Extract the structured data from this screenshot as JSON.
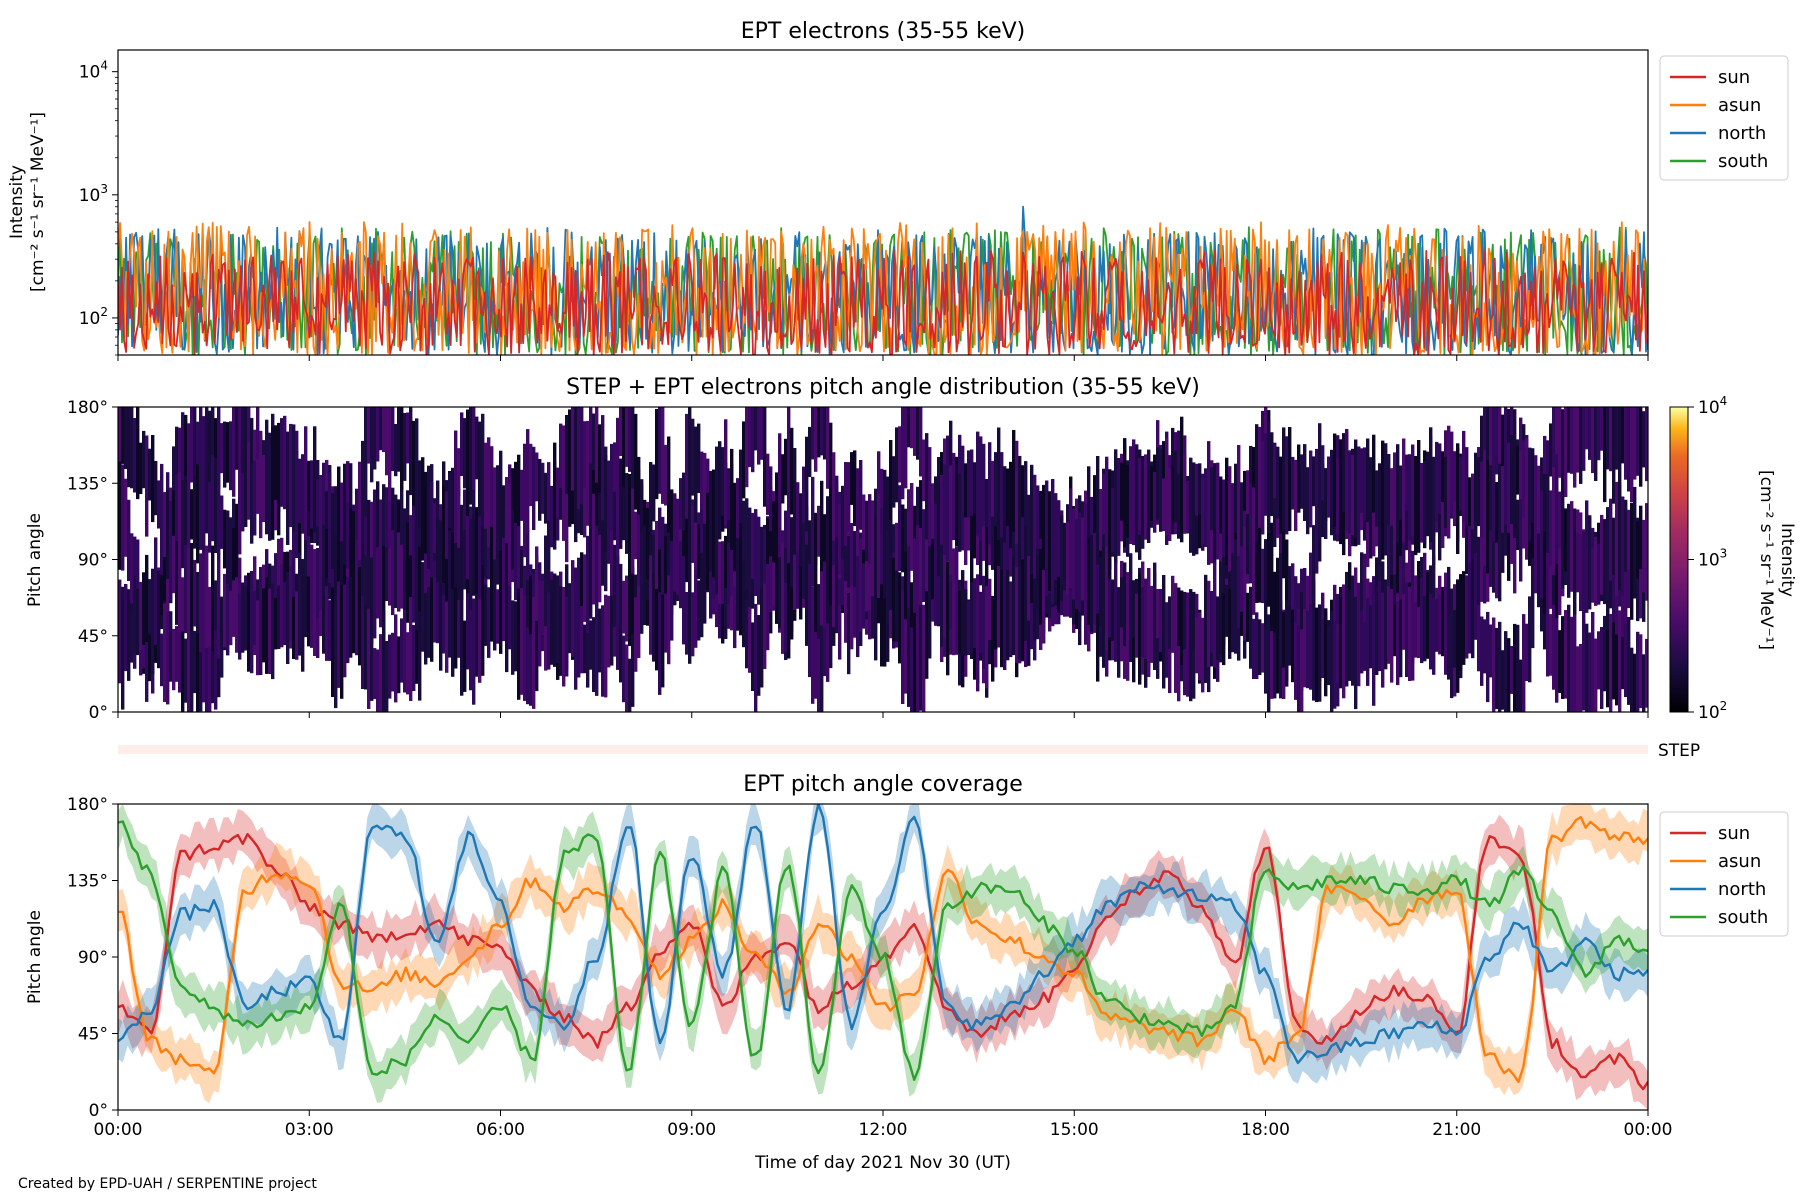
{
  "footer": "Created by EPD-UAH / SERPENTINE project",
  "colors": {
    "sun": "#d62728",
    "asun": "#ff7f0e",
    "north": "#1f77b4",
    "south": "#2ca02c"
  },
  "chart_data": [
    {
      "type": "line",
      "title": "EPT electrons (35-55 keV)",
      "ylabel": [
        "Intensity",
        "[cm⁻² s⁻¹ sr⁻¹ MeV⁻¹]"
      ],
      "yscale": "log",
      "ylim": [
        50,
        15000
      ],
      "yticks": [
        {
          "value": 100,
          "base": "10",
          "exp": "2"
        },
        {
          "value": 1000,
          "base": "10",
          "exp": "3"
        },
        {
          "value": 10000,
          "base": "10",
          "exp": "4"
        }
      ],
      "xlim": [
        0,
        24
      ],
      "legend": {
        "placement": "outside-right-top",
        "entries": [
          "sun",
          "asun",
          "north",
          "south"
        ]
      },
      "series": [
        {
          "name": "south",
          "typical_range": [
            50,
            500
          ],
          "max": 550
        },
        {
          "name": "north",
          "typical_range": [
            50,
            500
          ],
          "max": 800
        },
        {
          "name": "asun",
          "typical_range": [
            50,
            550
          ],
          "max": 630
        },
        {
          "name": "sun",
          "typical_range": [
            50,
            320
          ],
          "max": 350
        }
      ],
      "note": "noisy time series sampled at ~1 min cadence"
    },
    {
      "type": "heatmap",
      "title": "STEP + EPT electrons pitch angle distribution (35-55 keV)",
      "ylabel": "Pitch angle",
      "yticks": [
        "0°",
        "45°",
        "90°",
        "135°",
        "180°"
      ],
      "ylim": [
        0,
        180
      ],
      "xlim": [
        0,
        24
      ],
      "colorbar": {
        "label": [
          "Intensity",
          "[cm⁻² s⁻¹ sr⁻¹ MeV⁻¹]"
        ],
        "scale": "log",
        "range": [
          100,
          10000
        ],
        "ticks": [
          {
            "base": "10",
            "exp": "2"
          },
          {
            "base": "10",
            "exp": "3"
          },
          {
            "base": "10",
            "exp": "4"
          }
        ],
        "colormap": "inferno"
      },
      "values_description": "intensities mostly 100-300, dark purple tracks following the EPT sensor pitch angles"
    },
    {
      "type": "heatmap",
      "title": "",
      "ylabel": "STEP",
      "note": "thin STEP strip, near-empty (pale)"
    },
    {
      "type": "line",
      "title": "EPT pitch angle coverage",
      "ylabel": "Pitch angle",
      "yticks": [
        "0°",
        "45°",
        "90°",
        "135°",
        "180°"
      ],
      "ylim": [
        0,
        180
      ],
      "xlim": [
        0,
        24
      ],
      "xticks": [
        "00:00",
        "03:00",
        "06:00",
        "09:00",
        "12:00",
        "15:00",
        "18:00",
        "21:00",
        "00:00"
      ],
      "xlabel": "Time of day 2021 Nov 30 (UT)",
      "legend": {
        "placement": "outside-right-top",
        "entries": [
          "sun",
          "asun",
          "north",
          "south"
        ]
      },
      "series": [
        {
          "name": "sun",
          "x": [
            0,
            0.5,
            1,
            1.5,
            2,
            2.5,
            3,
            3.5,
            4,
            4.5,
            5,
            5.5,
            6,
            6.5,
            7,
            7.5,
            8,
            8.5,
            9,
            9.5,
            10,
            10.5,
            11,
            11.5,
            12,
            12.5,
            13,
            13.5,
            14,
            14.5,
            15,
            15.5,
            16,
            16.5,
            17,
            17.5,
            18,
            18.5,
            19,
            19.5,
            20,
            20.5,
            21,
            21.5,
            22,
            22.5,
            23,
            23.5,
            24
          ],
          "y": [
            60,
            45,
            150,
            155,
            160,
            140,
            120,
            110,
            100,
            105,
            110,
            100,
            95,
            70,
            55,
            40,
            60,
            95,
            110,
            60,
            90,
            100,
            60,
            75,
            90,
            110,
            60,
            45,
            55,
            65,
            85,
            110,
            130,
            140,
            120,
            85,
            155,
            50,
            40,
            60,
            70,
            65,
            45,
            160,
            150,
            40,
            20,
            30,
            15
          ]
        },
        {
          "name": "asun",
          "x": [
            0,
            0.5,
            1,
            1.5,
            2,
            2.5,
            3,
            3.5,
            4,
            4.5,
            5,
            5.5,
            6,
            6.5,
            7,
            7.5,
            8,
            8.5,
            9,
            9.5,
            10,
            10.5,
            11,
            11.5,
            12,
            12.5,
            13,
            13.5,
            14,
            14.5,
            15,
            15.5,
            16,
            16.5,
            17,
            17.5,
            18,
            18.5,
            19,
            19.5,
            20,
            20.5,
            21,
            21.5,
            22,
            22.5,
            23,
            23.5,
            24
          ],
          "y": [
            120,
            40,
            30,
            20,
            130,
            140,
            135,
            75,
            70,
            80,
            75,
            90,
            110,
            135,
            120,
            130,
            115,
            80,
            100,
            120,
            90,
            70,
            110,
            90,
            60,
            70,
            140,
            110,
            100,
            90,
            80,
            55,
            50,
            45,
            40,
            60,
            30,
            45,
            130,
            125,
            110,
            125,
            130,
            30,
            20,
            160,
            170,
            160,
            160
          ]
        },
        {
          "name": "north",
          "x": [
            0,
            0.5,
            1,
            1.5,
            2,
            2.5,
            3,
            3.5,
            4,
            4.5,
            5,
            5.5,
            6,
            6.5,
            7,
            7.5,
            8,
            8.5,
            9,
            9.5,
            10,
            10.5,
            11,
            11.5,
            12,
            12.5,
            13,
            13.5,
            14,
            14.5,
            15,
            15.5,
            16,
            16.5,
            17,
            17.5,
            18,
            18.5,
            19,
            19.5,
            20,
            20.5,
            21,
            21.5,
            22,
            22.5,
            23,
            23.5,
            24
          ],
          "y": [
            40,
            60,
            115,
            120,
            60,
            70,
            75,
            40,
            170,
            160,
            100,
            160,
            120,
            60,
            50,
            90,
            170,
            40,
            150,
            80,
            170,
            60,
            180,
            50,
            120,
            170,
            60,
            50,
            60,
            80,
            100,
            120,
            130,
            130,
            125,
            120,
            80,
            30,
            35,
            40,
            45,
            50,
            45,
            90,
            110,
            80,
            100,
            80,
            80
          ]
        },
        {
          "name": "south",
          "x": [
            0,
            0.5,
            1,
            1.5,
            2,
            2.5,
            3,
            3.5,
            4,
            4.5,
            5,
            5.5,
            6,
            6.5,
            7,
            7.5,
            8,
            8.5,
            9,
            9.5,
            10,
            10.5,
            11,
            11.5,
            12,
            12.5,
            13,
            13.5,
            14,
            14.5,
            15,
            15.5,
            16,
            16.5,
            17,
            17.5,
            18,
            18.5,
            19,
            19.5,
            20,
            20.5,
            21,
            21.5,
            22,
            22.5,
            23,
            23.5,
            24
          ],
          "y": [
            170,
            140,
            70,
            60,
            50,
            55,
            60,
            120,
            20,
            30,
            55,
            40,
            60,
            30,
            150,
            160,
            20,
            150,
            50,
            140,
            30,
            145,
            20,
            130,
            90,
            20,
            120,
            130,
            130,
            110,
            95,
            65,
            55,
            50,
            45,
            60,
            140,
            130,
            135,
            135,
            130,
            130,
            135,
            120,
            140,
            115,
            80,
            100,
            95
          ]
        }
      ],
      "band_halfwidth": 12
    }
  ]
}
